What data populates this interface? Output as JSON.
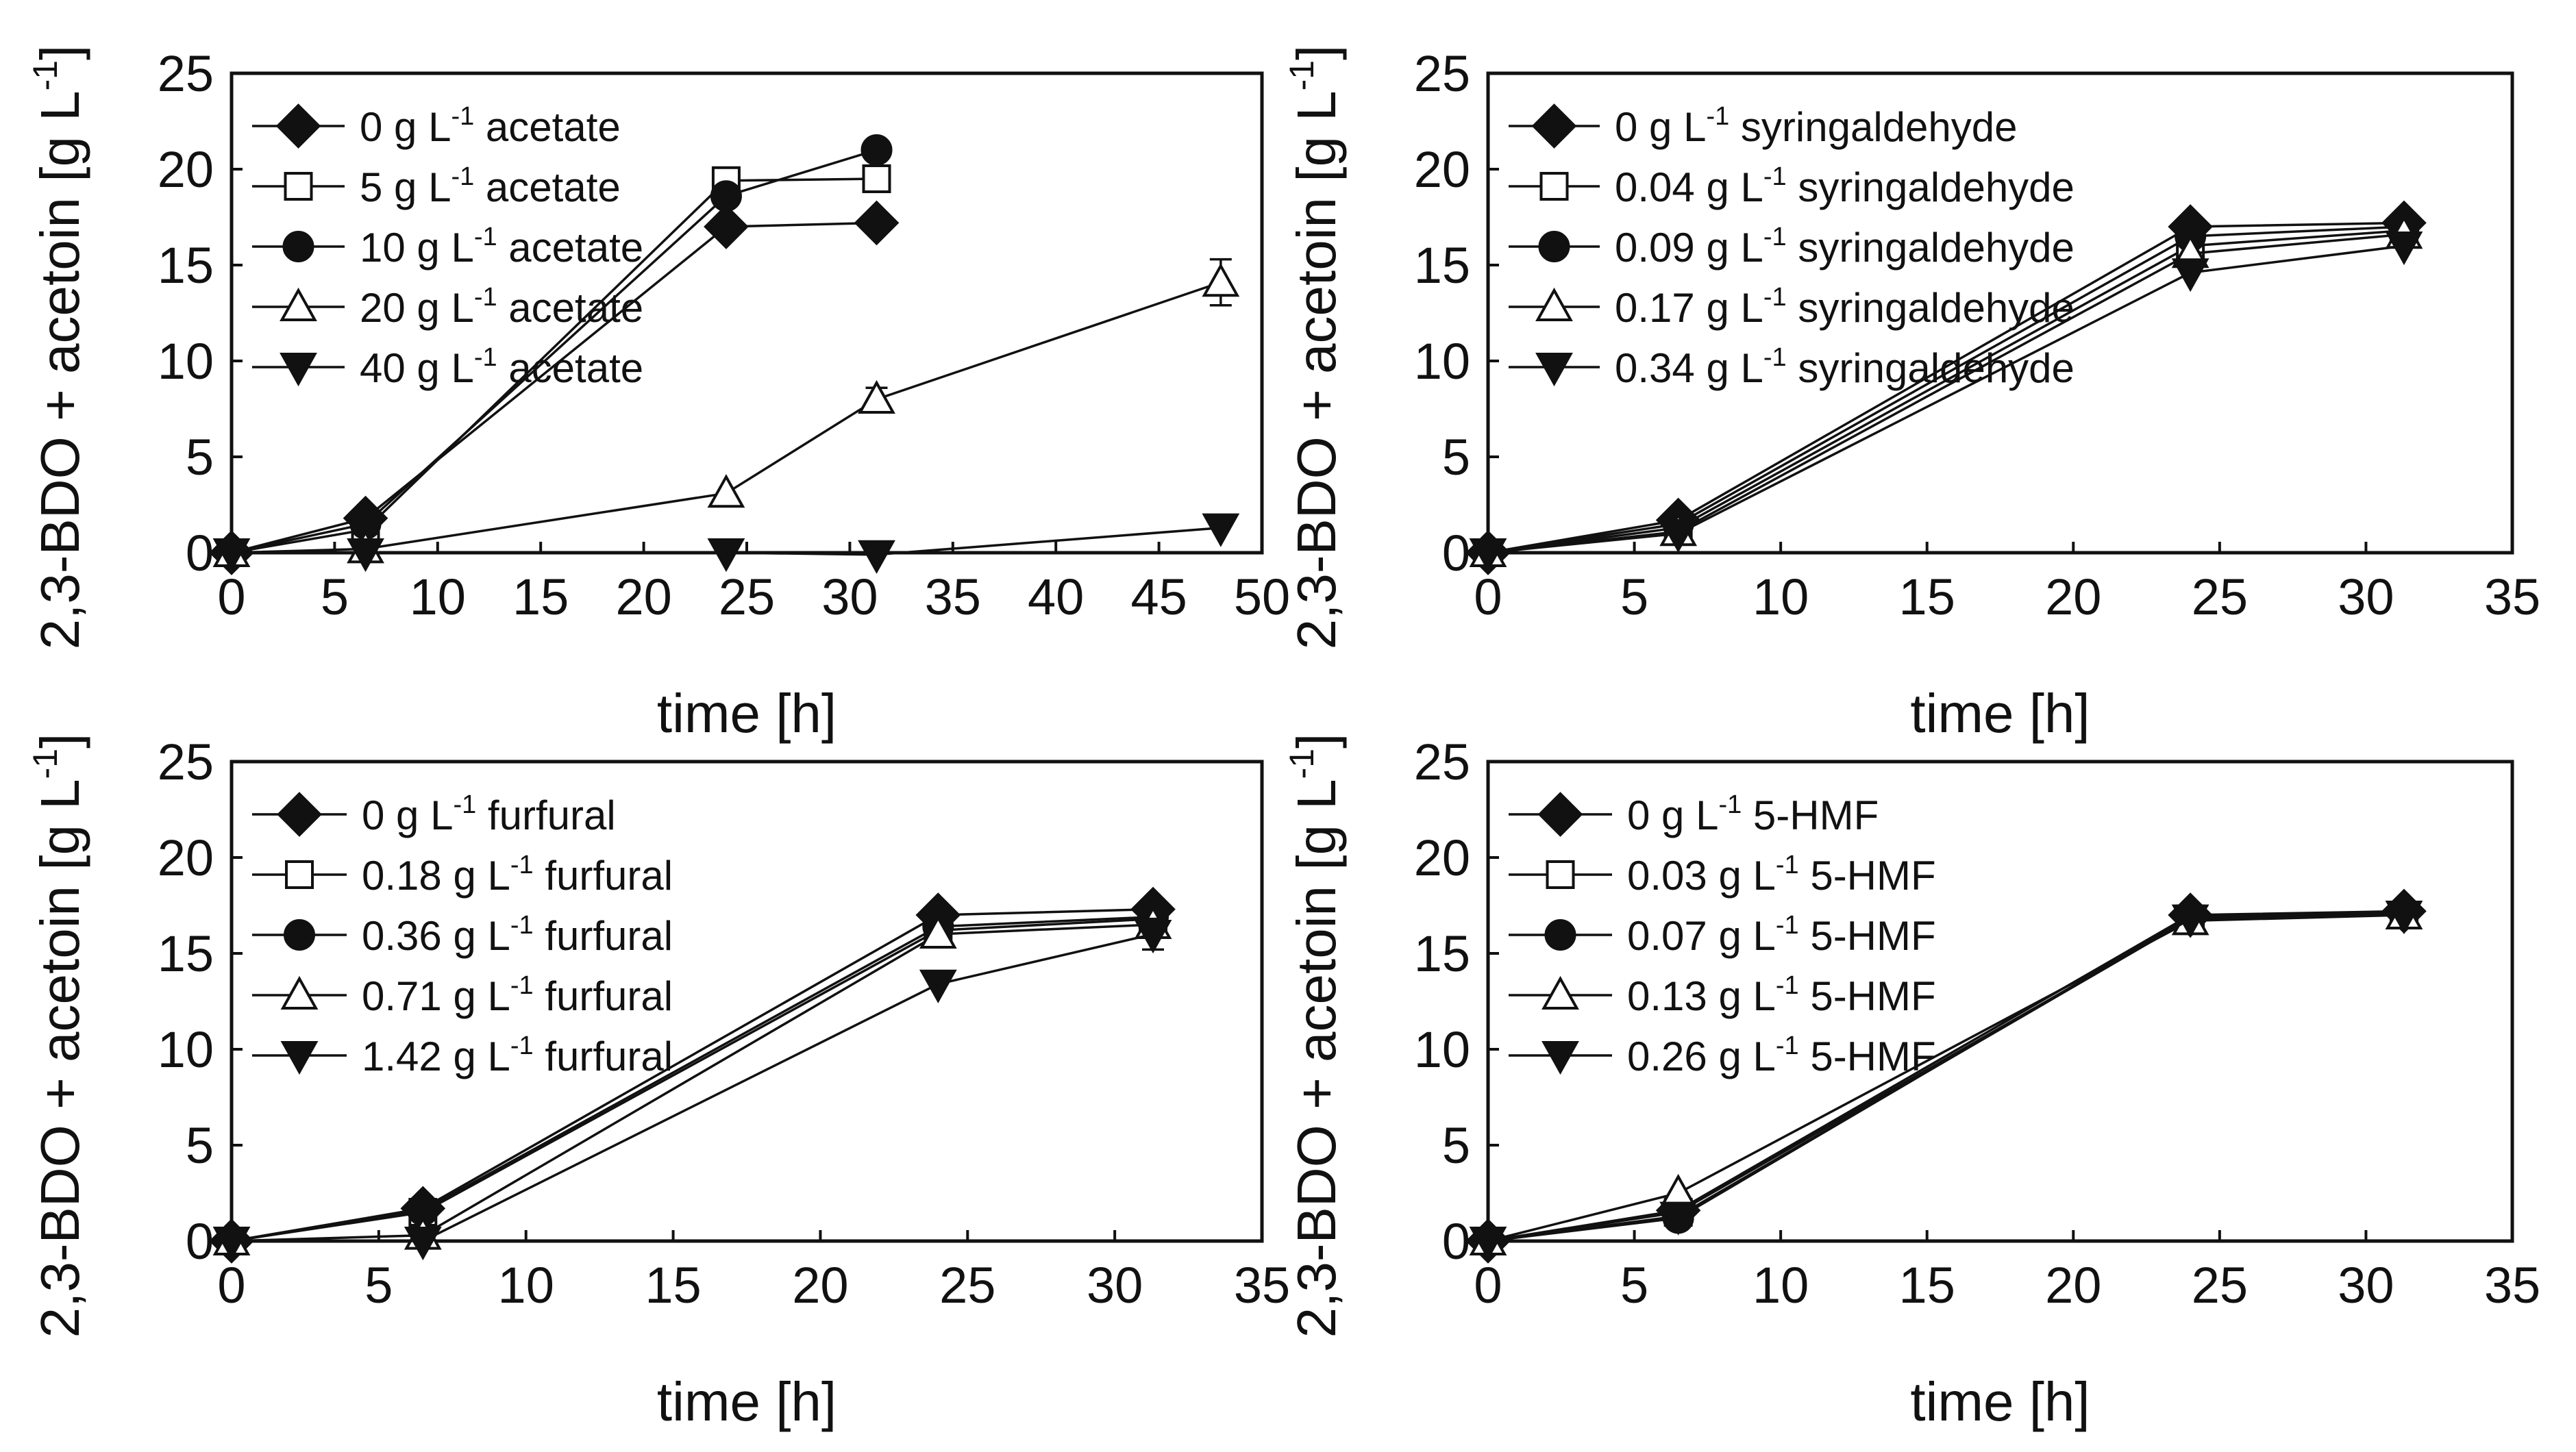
{
  "colors": {
    "ink": "#111111",
    "background": "#ffffff"
  },
  "chart_data": [
    {
      "type": "line",
      "panel": "top-left",
      "title": "",
      "xlabel": "time    [h]",
      "ylabel": "2,3-BDO + acetoin [g L",
      "ylabel_sup": "-1",
      "ylabel_tail": "]",
      "xlim": [
        0,
        50
      ],
      "ylim": [
        0,
        25
      ],
      "xticks": [
        0,
        5,
        10,
        15,
        20,
        25,
        30,
        35,
        40,
        45,
        50
      ],
      "yticks": [
        0,
        5,
        10,
        15,
        20,
        25
      ],
      "legend_position": "top-left",
      "series": [
        {
          "name": "0 g L-1 acetate",
          "label_pre": "0 g L",
          "label_sup": "-1",
          "label_post": " acetate",
          "marker": "diamond-filled",
          "x": [
            0,
            6.5,
            24,
            31.3
          ],
          "y": [
            0,
            1.8,
            17,
            17.2
          ]
        },
        {
          "name": "5 g L-1 acetate",
          "label_pre": "5 g L",
          "label_sup": "-1",
          "label_post": " acetate",
          "marker": "square-open",
          "x": [
            0,
            6.5,
            24,
            31.3
          ],
          "y": [
            0,
            1.2,
            19.4,
            19.5
          ]
        },
        {
          "name": "10 g L-1 acetate",
          "label_pre": "10 g L",
          "label_sup": "-1",
          "label_post": " acetate",
          "marker": "circle-filled",
          "x": [
            0,
            6.5,
            24,
            31.3
          ],
          "y": [
            0,
            1.5,
            18.6,
            21
          ]
        },
        {
          "name": "20 g L-1 acetate",
          "label_pre": "20 g L",
          "label_sup": "-1",
          "label_post": " acetate",
          "marker": "triangle-up-open",
          "x": [
            0,
            6.5,
            24,
            31.3,
            48
          ],
          "y": [
            0,
            0.2,
            3.1,
            8,
            14.1
          ],
          "yerr": [
            0,
            0,
            0,
            0.6,
            1.2
          ]
        },
        {
          "name": "40 g L-1 acetate",
          "label_pre": "40 g L",
          "label_sup": "-1",
          "label_post": " acetate",
          "marker": "triangle-down-filled",
          "x": [
            0,
            6.5,
            24,
            31.3,
            48
          ],
          "y": [
            0,
            0,
            0,
            -0.1,
            1.3
          ]
        }
      ]
    },
    {
      "type": "line",
      "panel": "top-right",
      "title": "",
      "xlabel": "time    [h]",
      "ylabel": "2,3-BDO + acetoin [g L",
      "ylabel_sup": "-1",
      "ylabel_tail": "]",
      "xlim": [
        0,
        35
      ],
      "ylim": [
        0,
        25
      ],
      "xticks": [
        0,
        5,
        10,
        15,
        20,
        25,
        30,
        35
      ],
      "yticks": [
        0,
        5,
        10,
        15,
        20,
        25
      ],
      "legend_position": "top-left",
      "series": [
        {
          "name": "0 g L-1 syringaldehyde",
          "label_pre": "0 g L",
          "label_sup": "-1",
          "label_post": " syringaldehyde",
          "marker": "diamond-filled",
          "x": [
            0,
            6.5,
            24,
            31.3
          ],
          "y": [
            0,
            1.7,
            17,
            17.2
          ]
        },
        {
          "name": "0.04 g L-1 syringaldehyde",
          "label_pre": "0.04 g L",
          "label_sup": "-1",
          "label_post": " syringaldehyde",
          "marker": "square-open",
          "x": [
            0,
            6.5,
            24,
            31.3
          ],
          "y": [
            0,
            1.3,
            16,
            16.8
          ]
        },
        {
          "name": "0.09 g L-1 syringaldehyde",
          "label_pre": "0.09 g L",
          "label_sup": "-1",
          "label_post": " syringaldehyde",
          "marker": "circle-filled",
          "x": [
            0,
            6.5,
            24,
            31.3
          ],
          "y": [
            0,
            1.5,
            16.5,
            17
          ]
        },
        {
          "name": "0.17 g L-1 syringaldehyde",
          "label_pre": "0.17 g L",
          "label_sup": "-1",
          "label_post": " syringaldehyde",
          "marker": "triangle-up-open",
          "x": [
            0,
            6.5,
            24,
            31.3
          ],
          "y": [
            0,
            1.1,
            15.6,
            16.6
          ]
        },
        {
          "name": "0.34 g L-1 syringaldehyde",
          "label_pre": "0.34 g L",
          "label_sup": "-1",
          "label_post": " syringaldehyde",
          "marker": "triangle-down-filled",
          "x": [
            0,
            6.5,
            24,
            31.3
          ],
          "y": [
            0,
            1.0,
            14.6,
            16
          ]
        }
      ]
    },
    {
      "type": "line",
      "panel": "bottom-left",
      "title": "",
      "xlabel": "time    [h]",
      "ylabel": "2,3-BDO + acetoin [g L",
      "ylabel_sup": "-1",
      "ylabel_tail": "]",
      "xlim": [
        0,
        35
      ],
      "ylim": [
        0,
        25
      ],
      "xticks": [
        0,
        5,
        10,
        15,
        20,
        25,
        30,
        35
      ],
      "yticks": [
        0,
        5,
        10,
        15,
        20,
        25
      ],
      "legend_position": "top-left",
      "series": [
        {
          "name": "0 g L-1 furfural",
          "label_pre": "0 g L",
          "label_sup": "-1",
          "label_post": " furfural",
          "marker": "diamond-filled",
          "x": [
            0,
            6.5,
            24,
            31.3
          ],
          "y": [
            0,
            1.7,
            17,
            17.3
          ]
        },
        {
          "name": "0.18 g L-1 furfural",
          "label_pre": "0.18 g L",
          "label_sup": "-1",
          "label_post": " furfural",
          "marker": "square-open",
          "x": [
            0,
            6.5,
            24,
            31.3
          ],
          "y": [
            0,
            1.5,
            16.2,
            16.8
          ]
        },
        {
          "name": "0.36 g L-1 furfural",
          "label_pre": "0.36 g L",
          "label_sup": "-1",
          "label_post": " furfural",
          "marker": "circle-filled",
          "x": [
            0,
            6.5,
            24,
            31.3
          ],
          "y": [
            0,
            1.6,
            16.4,
            16.9
          ]
        },
        {
          "name": "0.71 g L-1 furfural",
          "label_pre": "0.71 g L",
          "label_sup": "-1",
          "label_post": " furfural",
          "marker": "triangle-up-open",
          "x": [
            0,
            6.5,
            24,
            31.3
          ],
          "y": [
            0,
            0.3,
            16,
            16.5
          ]
        },
        {
          "name": "1.42 g L-1 furfural",
          "label_pre": "1.42 g L",
          "label_sup": "-1",
          "label_post": " furfural",
          "marker": "triangle-down-filled",
          "x": [
            0,
            6.5,
            24,
            31.3
          ],
          "y": [
            0,
            0,
            13.4,
            16
          ],
          "yerr": [
            0,
            0,
            0,
            0.8
          ]
        }
      ]
    },
    {
      "type": "line",
      "panel": "bottom-right",
      "title": "",
      "xlabel": "time    [h]",
      "ylabel": "2,3-BDO + acetoin [g L",
      "ylabel_sup": "-1",
      "ylabel_tail": "]",
      "xlim": [
        0,
        35
      ],
      "ylim": [
        0,
        25
      ],
      "xticks": [
        0,
        5,
        10,
        15,
        20,
        25,
        30,
        35
      ],
      "yticks": [
        0,
        5,
        10,
        15,
        20,
        25
      ],
      "legend_position": "top-left",
      "series": [
        {
          "name": "0 g L-1 5-HMF",
          "label_pre": "0 g L",
          "label_sup": "-1",
          "label_post": " 5-HMF",
          "marker": "diamond-filled",
          "x": [
            0,
            6.5,
            24,
            31.3
          ],
          "y": [
            0,
            1.6,
            17,
            17.2
          ]
        },
        {
          "name": "0.03 g L-1 5-HMF",
          "label_pre": "0.03 g L",
          "label_sup": "-1",
          "label_post": " 5-HMF",
          "marker": "square-open",
          "x": [
            0,
            6.5,
            24,
            31.3
          ],
          "y": [
            0,
            1.5,
            16.8,
            17
          ]
        },
        {
          "name": "0.07 g L-1 5-HMF",
          "label_pre": "0.07 g L",
          "label_sup": "-1",
          "label_post": " 5-HMF",
          "marker": "circle-filled",
          "x": [
            0,
            6.5,
            24,
            31.3
          ],
          "y": [
            0,
            1.2,
            16.9,
            17.1
          ]
        },
        {
          "name": "0.13 g L-1 5-HMF",
          "label_pre": "0.13 g L",
          "label_sup": "-1",
          "label_post": " 5-HMF",
          "marker": "triangle-up-open",
          "x": [
            0,
            6.5,
            24,
            31.3
          ],
          "y": [
            0,
            2.5,
            16.7,
            17
          ]
        },
        {
          "name": "0.26 g L-1 5-HMF",
          "label_pre": "0.26 g L",
          "label_sup": "-1",
          "label_post": " 5-HMF",
          "marker": "triangle-down-filled",
          "x": [
            0,
            6.5,
            24,
            31.3
          ],
          "y": [
            0,
            1.3,
            16.8,
            17
          ]
        }
      ]
    }
  ]
}
